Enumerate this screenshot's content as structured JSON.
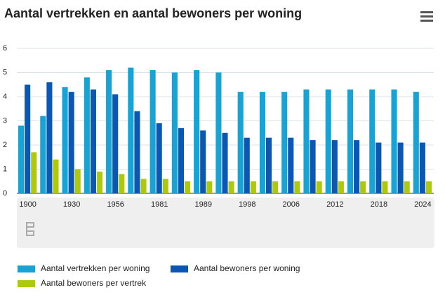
{
  "chart_data": {
    "type": "bar",
    "title": "Aantal vertrekken en aantal bewoners per woning",
    "categories": [
      "1900",
      null,
      "1930",
      null,
      "1956",
      null,
      "1981",
      null,
      "1989",
      null,
      "1998",
      null,
      "2006",
      null,
      "2012",
      null,
      "2018",
      null,
      "2024"
    ],
    "series": [
      {
        "name": "Aantal vertrekken per woning",
        "color": "#17a3d3",
        "values": [
          2.8,
          3.2,
          4.4,
          4.8,
          5.1,
          5.2,
          5.1,
          5.0,
          5.1,
          5.0,
          4.2,
          4.2,
          4.2,
          4.3,
          4.3,
          4.3,
          4.3,
          4.3,
          4.2
        ]
      },
      {
        "name": "Aantal bewoners per woning",
        "color": "#0a58b4",
        "values": [
          4.5,
          4.6,
          4.2,
          4.3,
          4.1,
          3.4,
          2.9,
          2.7,
          2.6,
          2.5,
          2.3,
          2.3,
          2.3,
          2.2,
          2.2,
          2.2,
          2.1,
          2.1,
          2.1
        ]
      },
      {
        "name": "Aantal bewoners per vertrek",
        "color": "#aec90b",
        "values": [
          1.7,
          1.4,
          1.0,
          0.9,
          0.8,
          0.6,
          0.6,
          0.5,
          0.5,
          0.5,
          0.5,
          0.5,
          0.5,
          0.5,
          0.5,
          0.5,
          0.5,
          0.5,
          0.5
        ]
      }
    ],
    "ylim": [
      0,
      6
    ],
    "yticks": [
      0,
      1,
      2,
      3,
      4,
      5,
      6
    ],
    "grid": true
  }
}
